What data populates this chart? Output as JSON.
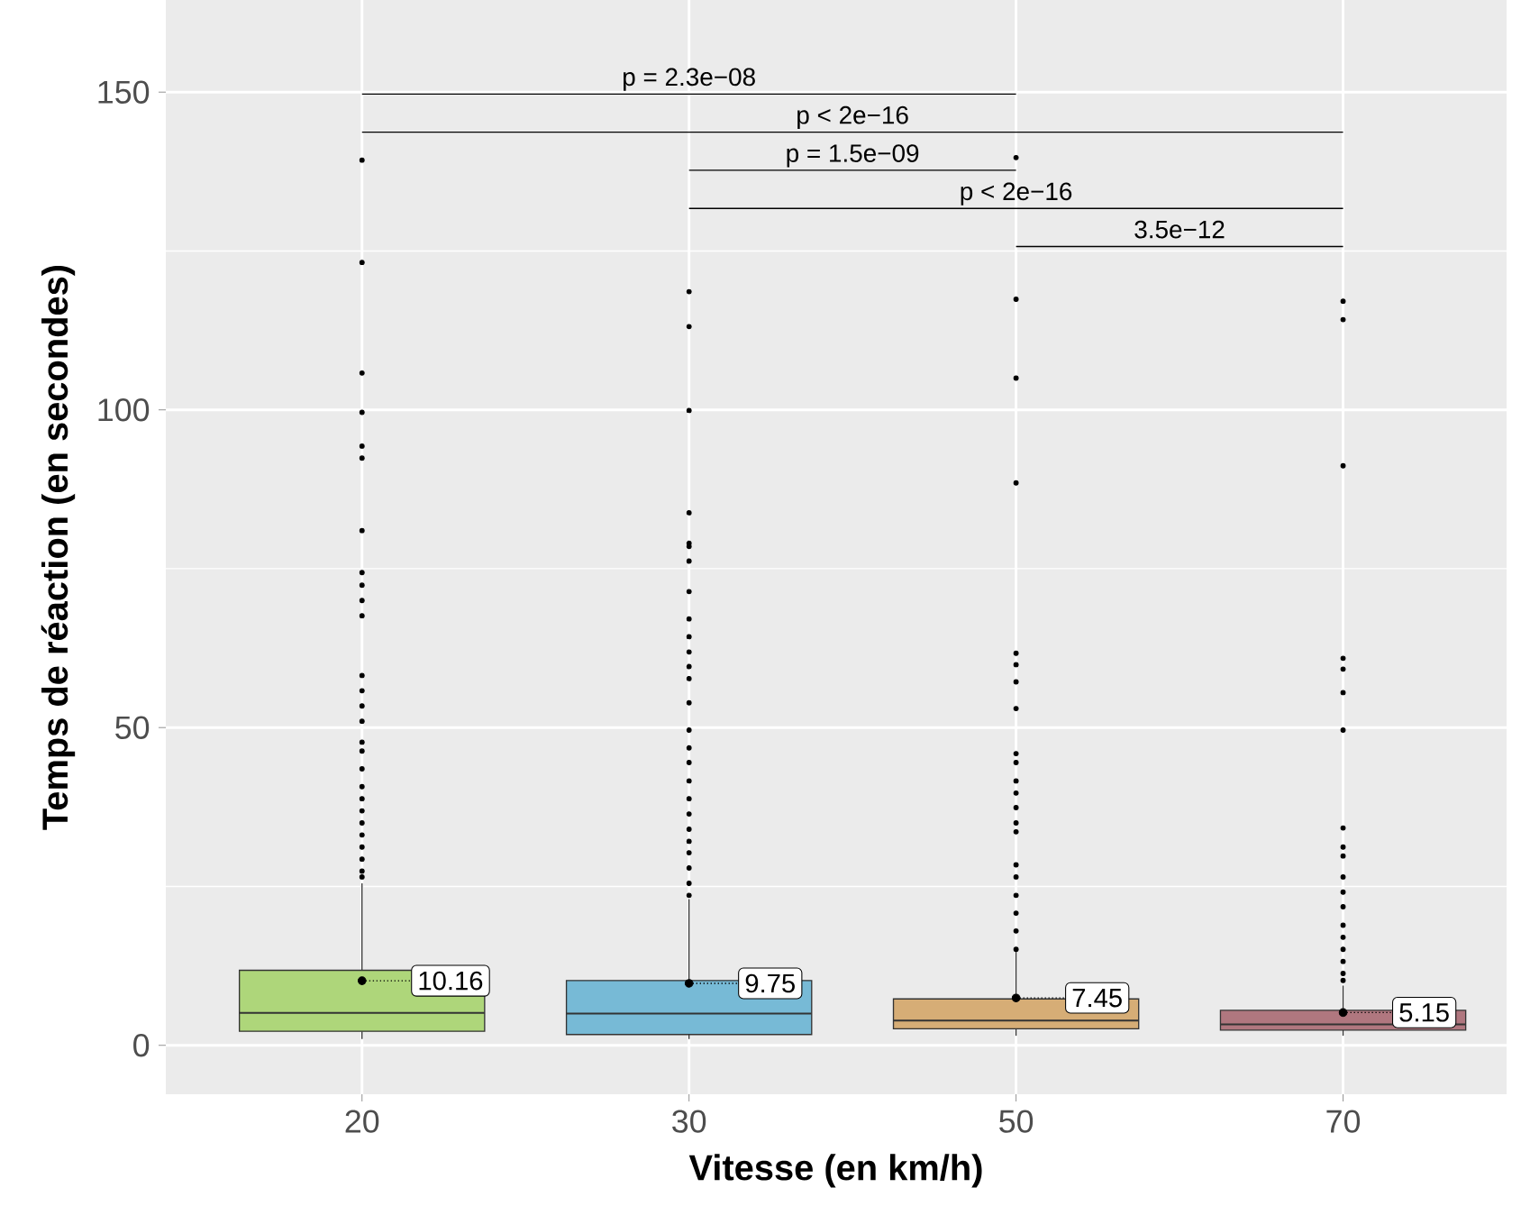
{
  "chart_data": {
    "type": "box",
    "categories": [
      "20",
      "30",
      "50",
      "70"
    ],
    "colors": [
      "#aed67a",
      "#77bad6",
      "#d6ad76",
      "#b0777f"
    ],
    "boxes": [
      {
        "low": 1.0,
        "q1": 2.2,
        "median": 5.1,
        "q3": 11.8,
        "high": 25.5,
        "mean": 10.16,
        "outliers": [
          139.3,
          123.2,
          105.8,
          99.6,
          94.3,
          92.4,
          81.0,
          74.4,
          72.4,
          70.0,
          67.6,
          58.2,
          55.8,
          53.4,
          51.0,
          47.7,
          46.3,
          43.5,
          40.7,
          38.8,
          36.9,
          35.0,
          33.1,
          31.2,
          29.3,
          27.4,
          26.5
        ]
      },
      {
        "low": 1.0,
        "q1": 1.7,
        "median": 5.0,
        "q3": 10.2,
        "high": 23.0,
        "mean": 9.75,
        "outliers": [
          118.6,
          113.1,
          99.9,
          83.8,
          79.0,
          78.5,
          76.2,
          71.4,
          67.1,
          64.3,
          61.9,
          59.6,
          57.7,
          53.9,
          49.6,
          46.8,
          44.5,
          41.6,
          38.8,
          36.4,
          34.0,
          32.1,
          30.3,
          27.9,
          25.5,
          23.6
        ]
      },
      {
        "low": 1.5,
        "q1": 2.6,
        "median": 3.9,
        "q3": 7.3,
        "high": 14.7,
        "mean": 7.45,
        "outliers": [
          139.7,
          117.4,
          105.0,
          88.5,
          61.7,
          59.9,
          57.2,
          53.0,
          45.9,
          44.5,
          41.6,
          39.7,
          37.4,
          35.0,
          33.6,
          28.4,
          26.5,
          23.6,
          20.8,
          18.0,
          15.1
        ]
      },
      {
        "low": 1.5,
        "q1": 2.4,
        "median": 3.3,
        "q3": 5.5,
        "high": 9.4,
        "mean": 5.15,
        "outliers": [
          117.1,
          114.2,
          91.2,
          60.9,
          59.2,
          55.5,
          49.6,
          34.2,
          31.2,
          29.8,
          26.5,
          24.1,
          21.8,
          18.9,
          17.0,
          15.1,
          13.2,
          11.3,
          10.2
        ]
      }
    ],
    "xlabel": "Vitesse (en km/h)",
    "ylabel": "Temps de réaction (en secondes)",
    "ylim": [
      -7.7,
      164.5
    ],
    "yticks": [
      0,
      50,
      100,
      150
    ],
    "grid": true,
    "annotations": [
      "p = 2.3e−08",
      "p < 2e−16",
      "p = 1.5e−09",
      "p < 2e−16",
      "3.5e−12",
      "10.16",
      {
        "text": "9.75",
        "x": "30",
        "y": 9.75
      },
      {
        "text": "7.45",
        "x": "50",
        "y": 7.45
      },
      {
        "text": "5.15",
        "x": "70",
        "y": 5.15
      }
    ]
  }
}
